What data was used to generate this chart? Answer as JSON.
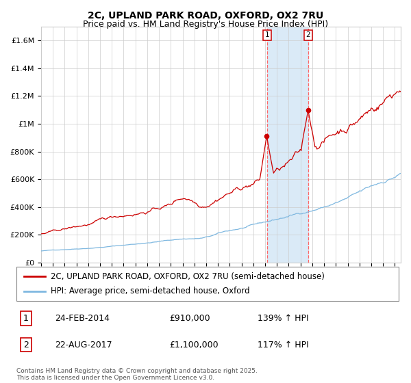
{
  "title": "2C, UPLAND PARK ROAD, OXFORD, OX2 7RU",
  "subtitle": "Price paid vs. HM Land Registry's House Price Index (HPI)",
  "ylabel_ticks": [
    "£0",
    "£200K",
    "£400K",
    "£600K",
    "£800K",
    "£1M",
    "£1.2M",
    "£1.4M",
    "£1.6M"
  ],
  "ytick_values": [
    0,
    200000,
    400000,
    600000,
    800000,
    1000000,
    1200000,
    1400000,
    1600000
  ],
  "ylim": [
    0,
    1700000
  ],
  "xlim_start": 1995.0,
  "xlim_end": 2025.5,
  "transaction1_date": 2014.15,
  "transaction1_price": 910000,
  "transaction1_label": "1",
  "transaction2_date": 2017.64,
  "transaction2_price": 1100000,
  "transaction2_label": "2",
  "shaded_region_color": "#daeaf7",
  "dashed_line_color": "#ff6666",
  "hpi_line_color": "#7fb8e0",
  "price_line_color": "#cc0000",
  "grid_color": "#cccccc",
  "background_color": "#ffffff",
  "legend_label_price": "2C, UPLAND PARK ROAD, OXFORD, OX2 7RU (semi-detached house)",
  "legend_label_hpi": "HPI: Average price, semi-detached house, Oxford",
  "table_row1": [
    "1",
    "24-FEB-2014",
    "£910,000",
    "139% ↑ HPI"
  ],
  "table_row2": [
    "2",
    "22-AUG-2017",
    "£1,100,000",
    "117% ↑ HPI"
  ],
  "footnote": "Contains HM Land Registry data © Crown copyright and database right 2025.\nThis data is licensed under the Open Government Licence v3.0.",
  "title_fontsize": 10,
  "subtitle_fontsize": 9,
  "tick_fontsize": 8,
  "legend_fontsize": 8.5,
  "table_fontsize": 9,
  "footnote_fontsize": 6.5
}
